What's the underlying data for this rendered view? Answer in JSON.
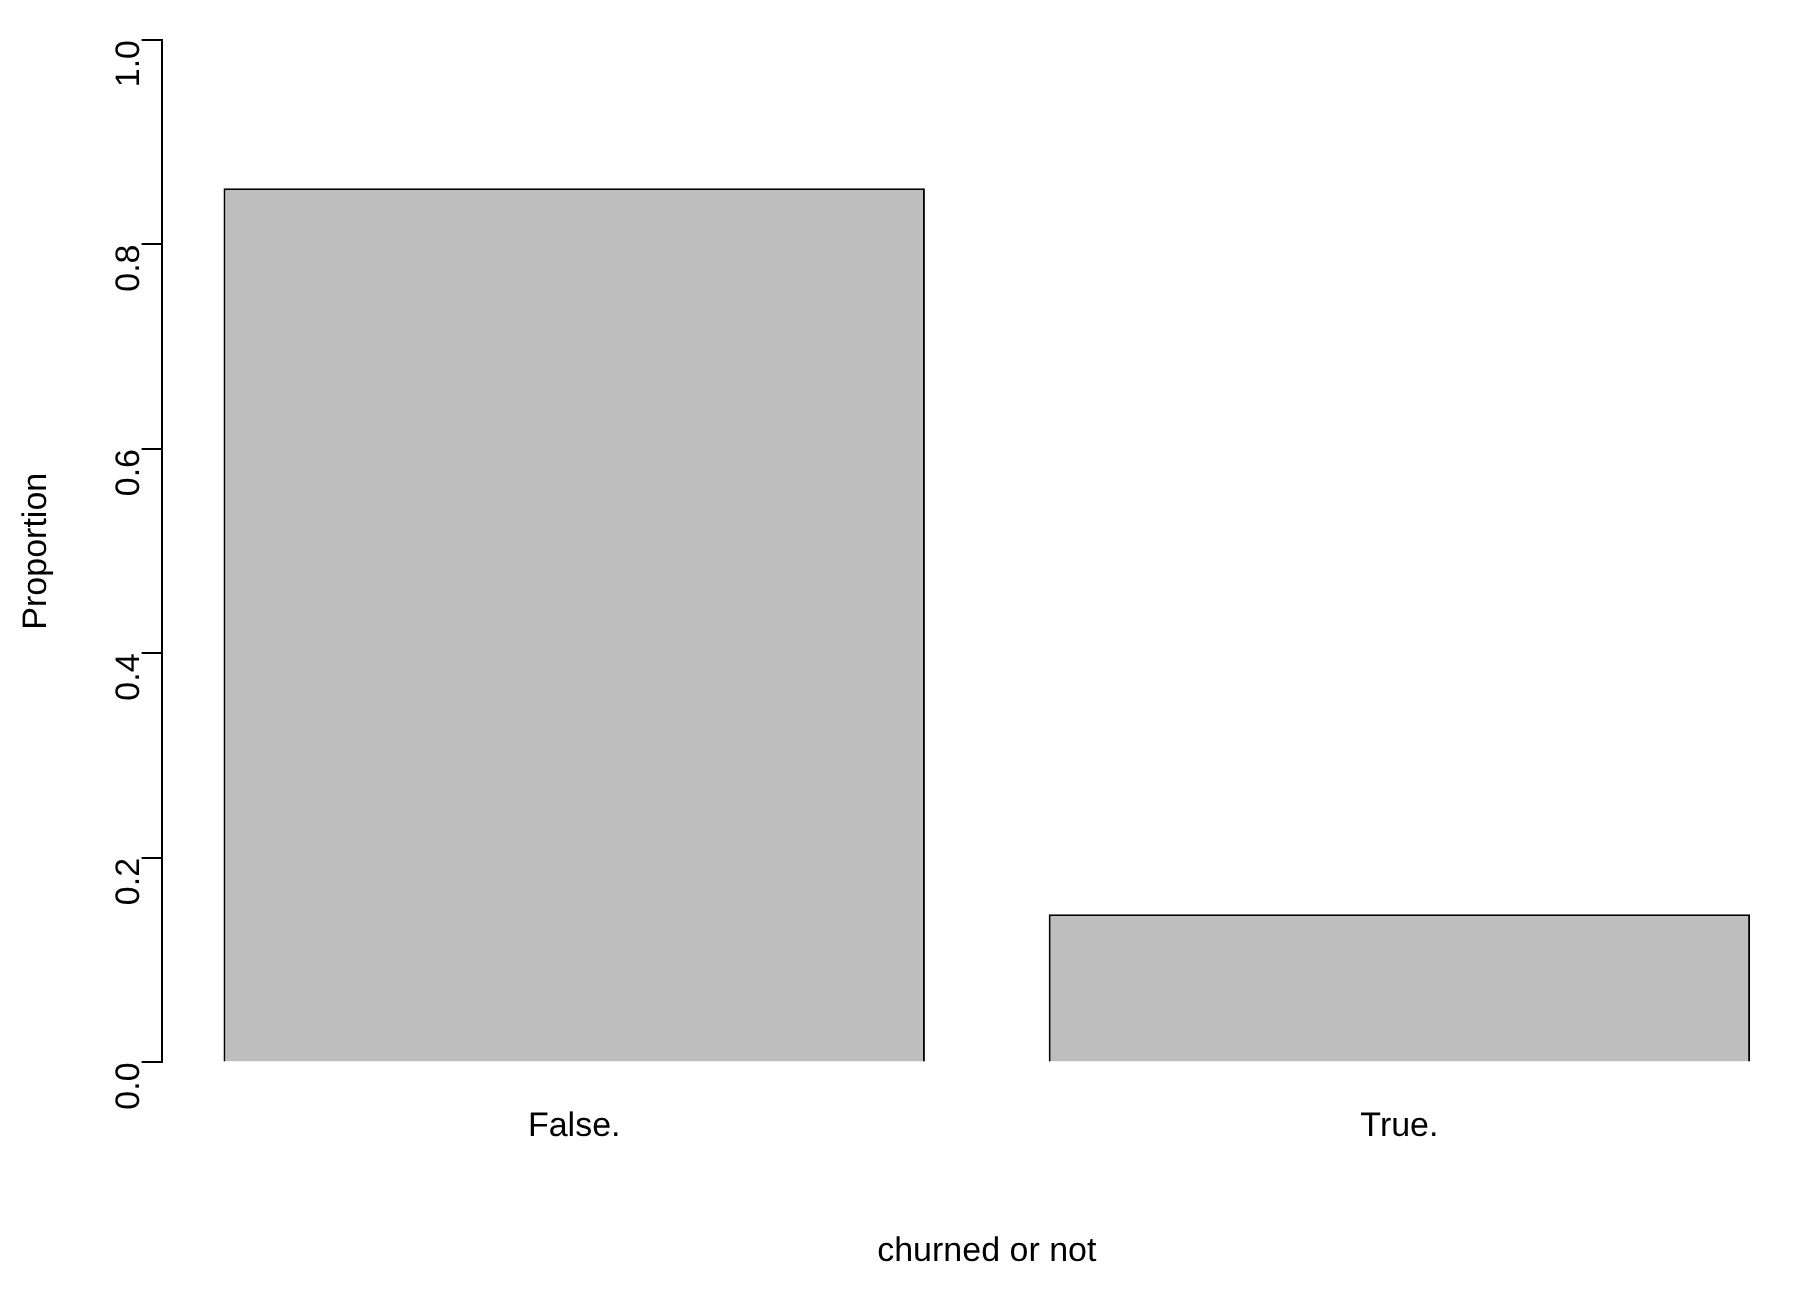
{
  "chart_data": {
    "type": "bar",
    "xlabel": "churned or not",
    "ylabel": "Proportion",
    "categories": [
      "False.",
      "True."
    ],
    "values": [
      0.855,
      0.145
    ],
    "color": "#bebebe",
    "ylim": [
      0,
      1
    ],
    "yticks": [
      {
        "value": 0,
        "label": "0.0"
      },
      0.2,
      0.4,
      0.6,
      0.8,
      {
        "value": 1,
        "label": "1.0"
      }
    ],
    "grid": false,
    "legend": false
  }
}
